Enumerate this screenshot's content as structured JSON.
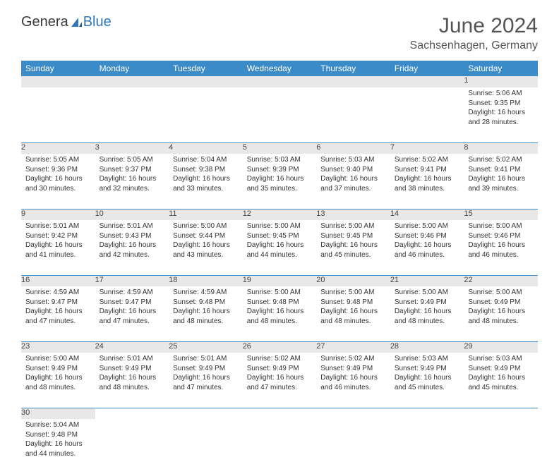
{
  "logo": {
    "text1": "Genera",
    "text2": "Blue"
  },
  "header": {
    "title": "June 2024",
    "location": "Sachsenhagen, Germany"
  },
  "days": [
    "Sunday",
    "Monday",
    "Tuesday",
    "Wednesday",
    "Thursday",
    "Friday",
    "Saturday"
  ],
  "colors": {
    "header_bg": "#3b8bc9",
    "header_text": "#ffffff",
    "daynum_bg": "#e8e8e8",
    "border": "#3b8bc9",
    "logo_accent": "#2f77b8"
  },
  "typography": {
    "title_fontsize": 30,
    "location_fontsize": 16,
    "day_header_fontsize": 12,
    "cell_fontsize": 10
  },
  "weeks": [
    [
      null,
      null,
      null,
      null,
      null,
      null,
      {
        "n": "1",
        "sunrise": "Sunrise: 5:06 AM",
        "sunset": "Sunset: 9:35 PM",
        "daylight": "Daylight: 16 hours and 28 minutes."
      }
    ],
    [
      {
        "n": "2",
        "sunrise": "Sunrise: 5:05 AM",
        "sunset": "Sunset: 9:36 PM",
        "daylight": "Daylight: 16 hours and 30 minutes."
      },
      {
        "n": "3",
        "sunrise": "Sunrise: 5:05 AM",
        "sunset": "Sunset: 9:37 PM",
        "daylight": "Daylight: 16 hours and 32 minutes."
      },
      {
        "n": "4",
        "sunrise": "Sunrise: 5:04 AM",
        "sunset": "Sunset: 9:38 PM",
        "daylight": "Daylight: 16 hours and 33 minutes."
      },
      {
        "n": "5",
        "sunrise": "Sunrise: 5:03 AM",
        "sunset": "Sunset: 9:39 PM",
        "daylight": "Daylight: 16 hours and 35 minutes."
      },
      {
        "n": "6",
        "sunrise": "Sunrise: 5:03 AM",
        "sunset": "Sunset: 9:40 PM",
        "daylight": "Daylight: 16 hours and 37 minutes."
      },
      {
        "n": "7",
        "sunrise": "Sunrise: 5:02 AM",
        "sunset": "Sunset: 9:41 PM",
        "daylight": "Daylight: 16 hours and 38 minutes."
      },
      {
        "n": "8",
        "sunrise": "Sunrise: 5:02 AM",
        "sunset": "Sunset: 9:41 PM",
        "daylight": "Daylight: 16 hours and 39 minutes."
      }
    ],
    [
      {
        "n": "9",
        "sunrise": "Sunrise: 5:01 AM",
        "sunset": "Sunset: 9:42 PM",
        "daylight": "Daylight: 16 hours and 41 minutes."
      },
      {
        "n": "10",
        "sunrise": "Sunrise: 5:01 AM",
        "sunset": "Sunset: 9:43 PM",
        "daylight": "Daylight: 16 hours and 42 minutes."
      },
      {
        "n": "11",
        "sunrise": "Sunrise: 5:00 AM",
        "sunset": "Sunset: 9:44 PM",
        "daylight": "Daylight: 16 hours and 43 minutes."
      },
      {
        "n": "12",
        "sunrise": "Sunrise: 5:00 AM",
        "sunset": "Sunset: 9:45 PM",
        "daylight": "Daylight: 16 hours and 44 minutes."
      },
      {
        "n": "13",
        "sunrise": "Sunrise: 5:00 AM",
        "sunset": "Sunset: 9:45 PM",
        "daylight": "Daylight: 16 hours and 45 minutes."
      },
      {
        "n": "14",
        "sunrise": "Sunrise: 5:00 AM",
        "sunset": "Sunset: 9:46 PM",
        "daylight": "Daylight: 16 hours and 46 minutes."
      },
      {
        "n": "15",
        "sunrise": "Sunrise: 5:00 AM",
        "sunset": "Sunset: 9:46 PM",
        "daylight": "Daylight: 16 hours and 46 minutes."
      }
    ],
    [
      {
        "n": "16",
        "sunrise": "Sunrise: 4:59 AM",
        "sunset": "Sunset: 9:47 PM",
        "daylight": "Daylight: 16 hours and 47 minutes."
      },
      {
        "n": "17",
        "sunrise": "Sunrise: 4:59 AM",
        "sunset": "Sunset: 9:47 PM",
        "daylight": "Daylight: 16 hours and 47 minutes."
      },
      {
        "n": "18",
        "sunrise": "Sunrise: 4:59 AM",
        "sunset": "Sunset: 9:48 PM",
        "daylight": "Daylight: 16 hours and 48 minutes."
      },
      {
        "n": "19",
        "sunrise": "Sunrise: 5:00 AM",
        "sunset": "Sunset: 9:48 PM",
        "daylight": "Daylight: 16 hours and 48 minutes."
      },
      {
        "n": "20",
        "sunrise": "Sunrise: 5:00 AM",
        "sunset": "Sunset: 9:48 PM",
        "daylight": "Daylight: 16 hours and 48 minutes."
      },
      {
        "n": "21",
        "sunrise": "Sunrise: 5:00 AM",
        "sunset": "Sunset: 9:49 PM",
        "daylight": "Daylight: 16 hours and 48 minutes."
      },
      {
        "n": "22",
        "sunrise": "Sunrise: 5:00 AM",
        "sunset": "Sunset: 9:49 PM",
        "daylight": "Daylight: 16 hours and 48 minutes."
      }
    ],
    [
      {
        "n": "23",
        "sunrise": "Sunrise: 5:00 AM",
        "sunset": "Sunset: 9:49 PM",
        "daylight": "Daylight: 16 hours and 48 minutes."
      },
      {
        "n": "24",
        "sunrise": "Sunrise: 5:01 AM",
        "sunset": "Sunset: 9:49 PM",
        "daylight": "Daylight: 16 hours and 48 minutes."
      },
      {
        "n": "25",
        "sunrise": "Sunrise: 5:01 AM",
        "sunset": "Sunset: 9:49 PM",
        "daylight": "Daylight: 16 hours and 47 minutes."
      },
      {
        "n": "26",
        "sunrise": "Sunrise: 5:02 AM",
        "sunset": "Sunset: 9:49 PM",
        "daylight": "Daylight: 16 hours and 47 minutes."
      },
      {
        "n": "27",
        "sunrise": "Sunrise: 5:02 AM",
        "sunset": "Sunset: 9:49 PM",
        "daylight": "Daylight: 16 hours and 46 minutes."
      },
      {
        "n": "28",
        "sunrise": "Sunrise: 5:03 AM",
        "sunset": "Sunset: 9:49 PM",
        "daylight": "Daylight: 16 hours and 45 minutes."
      },
      {
        "n": "29",
        "sunrise": "Sunrise: 5:03 AM",
        "sunset": "Sunset: 9:49 PM",
        "daylight": "Daylight: 16 hours and 45 minutes."
      }
    ],
    [
      {
        "n": "30",
        "sunrise": "Sunrise: 5:04 AM",
        "sunset": "Sunset: 9:48 PM",
        "daylight": "Daylight: 16 hours and 44 minutes."
      },
      null,
      null,
      null,
      null,
      null,
      null
    ]
  ]
}
